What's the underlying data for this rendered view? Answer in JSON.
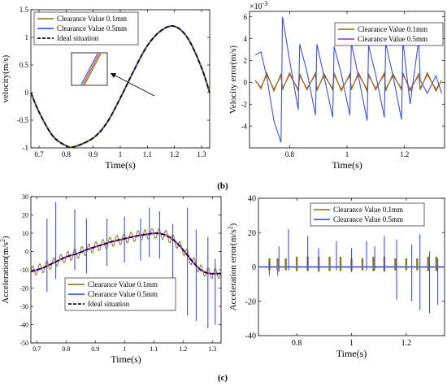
{
  "labels": {
    "b": "(b)",
    "c": "(c)"
  },
  "colors": {
    "c01": "#8a7a1a",
    "c05": "#3a52e8",
    "ideal": "#000000",
    "red": "#d23b2a",
    "purple": "#9a3fd0",
    "magenta": "#e0339a",
    "zero": "#2040ff"
  },
  "chart_data": [
    {
      "id": "velocity",
      "type": "line",
      "ylabel": "velocity(m/s)",
      "xlabel": "Time(s)",
      "xlim": [
        0.67,
        1.33
      ],
      "ylim": [
        -1.0,
        1.5
      ],
      "xticks": [
        "0.7",
        "0.8",
        "0.9",
        "1",
        "1.1",
        "1.2",
        "1.3"
      ],
      "xtickvals": [
        0.7,
        0.8,
        0.9,
        1.0,
        1.1,
        1.2,
        1.3
      ],
      "yticks": [
        "-1",
        "-0.5",
        "0",
        "0.5",
        "1",
        "1.5"
      ],
      "ytickvals": [
        -1,
        -0.5,
        0,
        0.5,
        1,
        1.5
      ],
      "x": [
        0.67,
        0.7,
        0.75,
        0.8,
        0.83,
        0.9,
        0.95,
        1.0,
        1.05,
        1.1,
        1.15,
        1.2,
        1.25,
        1.3,
        1.33
      ],
      "series": [
        {
          "name": "Clearance Value 0.1mm",
          "values": [
            0.0,
            -0.35,
            -0.78,
            -0.96,
            -0.98,
            -0.82,
            -0.55,
            -0.1,
            0.4,
            0.85,
            1.12,
            1.2,
            0.98,
            0.45,
            0.0
          ]
        },
        {
          "name": "Clearance Value 0.5mm",
          "values": [
            0.0,
            -0.35,
            -0.78,
            -0.96,
            -0.98,
            -0.82,
            -0.55,
            -0.1,
            0.4,
            0.85,
            1.12,
            1.2,
            0.98,
            0.45,
            0.0
          ]
        },
        {
          "name": "Ideal situation",
          "values": [
            0.0,
            -0.35,
            -0.78,
            -0.96,
            -0.98,
            -0.82,
            -0.55,
            -0.1,
            0.4,
            0.85,
            1.12,
            1.2,
            0.98,
            0.45,
            0.0
          ]
        }
      ]
    },
    {
      "id": "velocity-error",
      "type": "line",
      "ylabel": "Velocity error(m/s)",
      "xlabel": "Time(s)",
      "scale_note": "×10",
      "scale_exp": "-3",
      "xlim": [
        0.66,
        1.34
      ],
      "ylim": [
        -6,
        6.5
      ],
      "xticks": [
        "0.8",
        "1",
        "1.2"
      ],
      "xtickvals": [
        0.8,
        1.0,
        1.2
      ],
      "yticks": [
        "-4",
        "-2",
        "0",
        "2",
        "4",
        "6"
      ],
      "ytickvals": [
        -4,
        -2,
        0,
        2,
        4,
        6
      ],
      "x": [
        0.68,
        0.7,
        0.72,
        0.745,
        0.77,
        0.775,
        0.8,
        0.83,
        0.835,
        0.86,
        0.89,
        0.895,
        0.92,
        0.95,
        0.955,
        0.98,
        1.01,
        1.015,
        1.04,
        1.07,
        1.075,
        1.1,
        1.13,
        1.135,
        1.16,
        1.19,
        1.195,
        1.22,
        1.25,
        1.255,
        1.28,
        1.31,
        1.33
      ],
      "series": [
        {
          "name": "Clearance Value 0.1mm",
          "values": [
            0.2,
            -0.6,
            0.9,
            -0.8,
            0.8,
            -0.7,
            0.9,
            -0.8,
            0.8,
            -0.7,
            0.9,
            -0.8,
            0.8,
            -0.7,
            0.9,
            -0.8,
            0.8,
            -0.7,
            0.9,
            -0.8,
            0.8,
            -0.7,
            0.9,
            -0.8,
            0.8,
            -0.7,
            0.9,
            -0.8,
            0.8,
            -0.7,
            0.9,
            -0.8,
            0.2
          ]
        },
        {
          "name": "Clearance Value 0.5mm",
          "values": [
            2.5,
            2.8,
            0.5,
            -3.5,
            -5.5,
            6.0,
            2.0,
            -2.5,
            3.5,
            1.0,
            -3.0,
            3.5,
            0.5,
            -3.2,
            3.3,
            0.8,
            -3.0,
            3.6,
            0.5,
            -3.5,
            3.4,
            0.7,
            -3.2,
            3.6,
            0.6,
            -3.4,
            3.8,
            -2.0,
            3.9,
            0.2,
            -1.0,
            0.6,
            -1.0
          ]
        }
      ]
    },
    {
      "id": "acceleration",
      "type": "line",
      "ylabel": "Acceleration(m/s",
      "ylabel_sup": "2",
      "ylabel_tail": ")",
      "xlabel": "Time(s)",
      "xlim": [
        0.68,
        1.33
      ],
      "ylim": [
        -50,
        30
      ],
      "xticks": [
        "0.7",
        "0.8",
        "0.9",
        "1",
        "1.1",
        "1.2",
        "1.3"
      ],
      "xtickvals": [
        0.7,
        0.8,
        0.9,
        1.0,
        1.1,
        1.2,
        1.3
      ],
      "yticks": [
        "-50",
        "-40",
        "-30",
        "-20",
        "-10",
        "0",
        "10",
        "20",
        "30"
      ],
      "ytickvals": [
        -50,
        -40,
        -30,
        -20,
        -10,
        0,
        10,
        20,
        30
      ],
      "x": [
        0.68,
        0.72,
        0.76,
        0.8,
        0.84,
        0.88,
        0.92,
        0.96,
        1.0,
        1.04,
        1.08,
        1.11,
        1.14,
        1.17,
        1.2,
        1.23,
        1.26,
        1.29,
        1.33
      ],
      "series": [
        {
          "name": "Clearance Value 0.1mm",
          "values": [
            -11,
            -9,
            -6,
            -3,
            -1,
            1.5,
            3.5,
            5.5,
            7,
            8.5,
            9.5,
            10,
            9,
            6,
            1,
            -5,
            -10,
            -12,
            -12
          ]
        },
        {
          "name": "Clearance Value 0.5mm",
          "values": [
            -11,
            -9,
            -6,
            -3,
            -1,
            1.5,
            3.5,
            5.5,
            7,
            8.5,
            9.5,
            10,
            9,
            6,
            1,
            -5,
            -10,
            -12,
            -12
          ]
        },
        {
          "name": "Ideal situation",
          "values": [
            -11,
            -9,
            -6,
            -3,
            -1,
            1.5,
            3.5,
            5.5,
            7,
            8.5,
            9.5,
            10,
            9,
            6,
            1,
            -5,
            -10,
            -12,
            -12
          ]
        }
      ],
      "spikes_05": [
        {
          "x": 0.735,
          "lo": -22,
          "hi": 18
        },
        {
          "x": 0.765,
          "lo": -15,
          "hi": 27
        },
        {
          "x": 0.83,
          "lo": -10,
          "hi": 23
        },
        {
          "x": 0.87,
          "lo": -12,
          "hi": 18
        },
        {
          "x": 0.94,
          "lo": -8,
          "hi": 18
        },
        {
          "x": 1.0,
          "lo": -6,
          "hi": 19
        },
        {
          "x": 1.055,
          "lo": -5,
          "hi": 18
        },
        {
          "x": 1.085,
          "lo": -3,
          "hi": 24
        },
        {
          "x": 1.12,
          "lo": -4,
          "hi": 22
        },
        {
          "x": 1.165,
          "lo": -30,
          "hi": 15
        },
        {
          "x": 1.215,
          "lo": -35,
          "hi": 24
        },
        {
          "x": 1.245,
          "lo": -38,
          "hi": 12
        },
        {
          "x": 1.285,
          "lo": -42,
          "hi": 8
        },
        {
          "x": 1.31,
          "lo": -40,
          "hi": -4
        }
      ]
    },
    {
      "id": "acceleration-error",
      "type": "line",
      "ylabel": "Acceleration error(m/s",
      "ylabel_sup": "2",
      "ylabel_tail": ")",
      "xlabel": "Time(s)",
      "xlim": [
        0.66,
        1.34
      ],
      "ylim": [
        -40,
        40
      ],
      "xticks": [
        "0.8",
        "1",
        "1.2"
      ],
      "xtickvals": [
        0.8,
        1.0,
        1.2
      ],
      "yticks": [
        "-40",
        "-20",
        "0",
        "20",
        "40"
      ],
      "ytickvals": [
        -40,
        -20,
        0,
        20,
        40
      ],
      "series": [
        {
          "name": "Clearance Value 0.1mm"
        },
        {
          "name": "Clearance Value 0.5mm"
        }
      ],
      "spikes_05": [
        {
          "x": 0.7,
          "lo": -5,
          "hi": 3
        },
        {
          "x": 0.735,
          "lo": -3,
          "hi": 12
        },
        {
          "x": 0.77,
          "lo": -2,
          "hi": 22
        },
        {
          "x": 0.84,
          "lo": -2,
          "hi": 18
        },
        {
          "x": 0.88,
          "lo": -3,
          "hi": 11
        },
        {
          "x": 0.945,
          "lo": -2,
          "hi": 15
        },
        {
          "x": 1.0,
          "lo": -3,
          "hi": 11
        },
        {
          "x": 1.055,
          "lo": -2,
          "hi": 15
        },
        {
          "x": 1.085,
          "lo": -2,
          "hi": 12
        },
        {
          "x": 1.12,
          "lo": -3,
          "hi": 18
        },
        {
          "x": 1.165,
          "lo": -19,
          "hi": 16
        },
        {
          "x": 1.22,
          "lo": -20,
          "hi": 13
        },
        {
          "x": 1.25,
          "lo": -25,
          "hi": 19
        },
        {
          "x": 1.285,
          "lo": -27,
          "hi": 9
        },
        {
          "x": 1.315,
          "lo": -22,
          "hi": 5
        }
      ],
      "spikes_01": [
        {
          "x": 0.7,
          "amp": 5
        },
        {
          "x": 0.73,
          "amp": 5
        },
        {
          "x": 0.76,
          "amp": 5
        },
        {
          "x": 0.8,
          "amp": 6
        },
        {
          "x": 0.84,
          "amp": 6
        },
        {
          "x": 0.88,
          "amp": 6
        },
        {
          "x": 0.92,
          "amp": 6
        },
        {
          "x": 0.96,
          "amp": 6
        },
        {
          "x": 1.0,
          "amp": 5
        },
        {
          "x": 1.04,
          "amp": 5
        },
        {
          "x": 1.08,
          "amp": 6
        },
        {
          "x": 1.12,
          "amp": 6
        },
        {
          "x": 1.16,
          "amp": 5
        },
        {
          "x": 1.2,
          "amp": 5
        },
        {
          "x": 1.24,
          "amp": 5
        },
        {
          "x": 1.28,
          "amp": 6
        },
        {
          "x": 1.31,
          "amp": 6
        }
      ]
    }
  ]
}
